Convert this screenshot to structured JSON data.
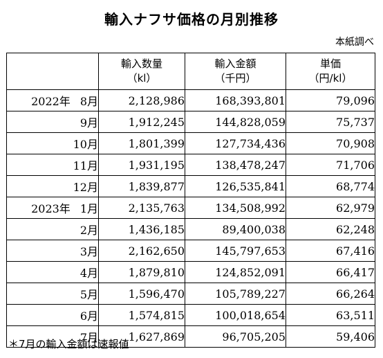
{
  "title": "輸入ナフサ価格の月別推移",
  "source": "本紙調べ",
  "columns": [
    {
      "label": "輸入数量",
      "unit": "（kl）"
    },
    {
      "label": "輸入金額",
      "unit": "（千円）"
    },
    {
      "label": "単価",
      "unit": "（円/kl）"
    }
  ],
  "rows": [
    {
      "year": "2022年",
      "month": "8月",
      "qty": "2,128,986",
      "amount": "168,393,801",
      "price": "79,096"
    },
    {
      "year": "",
      "month": "9月",
      "qty": "1,912,245",
      "amount": "144,828,059",
      "price": "75,737"
    },
    {
      "year": "",
      "month": "10月",
      "qty": "1,801,399",
      "amount": "127,734,436",
      "price": "70,908"
    },
    {
      "year": "",
      "month": "11月",
      "qty": "1,931,195",
      "amount": "138,478,247",
      "price": "71,706"
    },
    {
      "year": "",
      "month": "12月",
      "qty": "1,839,877",
      "amount": "126,535,841",
      "price": "68,774"
    },
    {
      "year": "2023年",
      "month": "1月",
      "qty": "2,135,763",
      "amount": "134,508,992",
      "price": "62,979"
    },
    {
      "year": "",
      "month": "2月",
      "qty": "1,436,185",
      "amount": "89,400,038",
      "price": "62,248"
    },
    {
      "year": "",
      "month": "3月",
      "qty": "2,162,650",
      "amount": "145,797,653",
      "price": "67,416"
    },
    {
      "year": "",
      "month": "4月",
      "qty": "1,879,810",
      "amount": "124,852,091",
      "price": "66,417"
    },
    {
      "year": "",
      "month": "5月",
      "qty": "1,596,470",
      "amount": "105,789,227",
      "price": "66,264"
    },
    {
      "year": "",
      "month": "6月",
      "qty": "1,574,815",
      "amount": "100,018,654",
      "price": "63,511"
    },
    {
      "year": "",
      "month": "7月",
      "qty": "1,627,869",
      "amount": "96,705,205",
      "price": "59,406"
    }
  ],
  "footnote": "＊7月の輸入金額は速報値"
}
